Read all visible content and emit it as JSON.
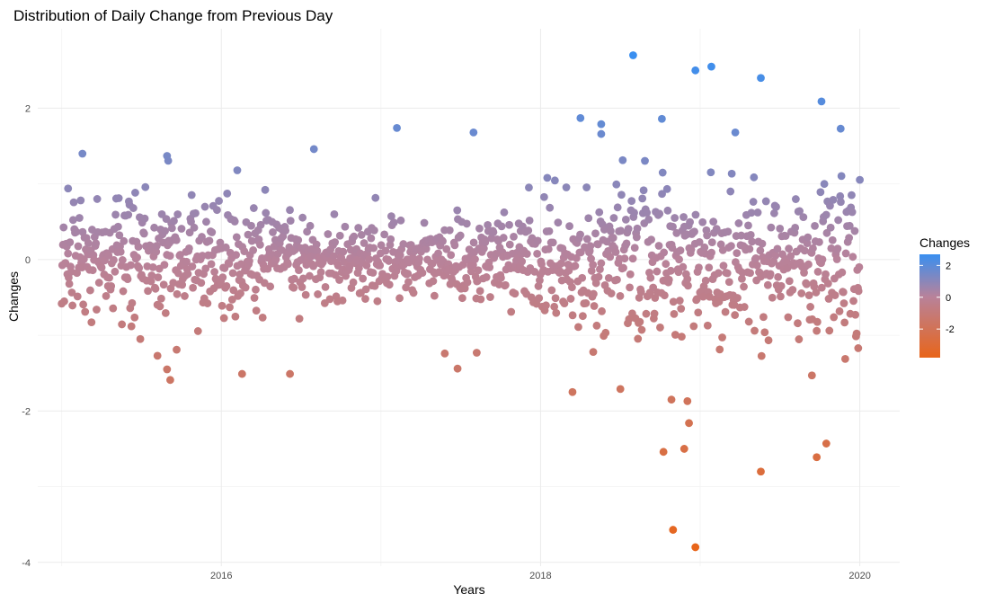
{
  "chart_data": {
    "type": "scatter",
    "title": "Distribution of Daily Change from Previous Day",
    "xlabel": "Years",
    "ylabel": "Changes",
    "xlim": [
      2014.85,
      2020.25
    ],
    "ylim": [
      -4.05,
      3.05
    ],
    "x_ticks": [
      2016,
      2018,
      2020
    ],
    "x_tick_labels": [
      "2016",
      "2018",
      "2020"
    ],
    "y_ticks": [
      -4,
      -2,
      0,
      2
    ],
    "y_tick_labels": [
      "-4",
      "-2",
      "0",
      "2"
    ],
    "grid": true,
    "legend": {
      "title": "Changes",
      "position": "right",
      "type": "colorbar",
      "ticks": [
        2,
        0,
        -2
      ],
      "tick_labels": [
        "2",
        "0",
        "-2"
      ],
      "range": [
        -3.8,
        2.7
      ],
      "color_low": "#e8651a",
      "color_mid": "#b8829a",
      "color_high": "#3a8ff0"
    },
    "highlighted_points": [
      {
        "x": 2018.58,
        "y": 2.7
      },
      {
        "x": 2018.97,
        "y": 2.5
      },
      {
        "x": 2019.07,
        "y": 2.55
      },
      {
        "x": 2019.38,
        "y": 2.4
      },
      {
        "x": 2019.76,
        "y": 2.09
      },
      {
        "x": 2017.1,
        "y": 1.74
      },
      {
        "x": 2017.58,
        "y": 1.68
      },
      {
        "x": 2018.25,
        "y": 1.87
      },
      {
        "x": 2018.38,
        "y": 1.79
      },
      {
        "x": 2018.38,
        "y": 1.66
      },
      {
        "x": 2018.76,
        "y": 1.86
      },
      {
        "x": 2019.22,
        "y": 1.68
      },
      {
        "x": 2019.88,
        "y": 1.73
      },
      {
        "x": 2016.58,
        "y": 1.46
      },
      {
        "x": 2015.13,
        "y": 1.4
      },
      {
        "x": 2015.66,
        "y": 1.37
      },
      {
        "x": 2016.1,
        "y": 1.18
      },
      {
        "x": 2015.04,
        "y": 0.94
      },
      {
        "x": 2018.97,
        "y": -3.8
      },
      {
        "x": 2018.83,
        "y": -3.57
      },
      {
        "x": 2019.38,
        "y": -2.8
      },
      {
        "x": 2019.73,
        "y": -2.61
      },
      {
        "x": 2019.79,
        "y": -2.43
      },
      {
        "x": 2018.77,
        "y": -2.54
      },
      {
        "x": 2018.9,
        "y": -2.5
      },
      {
        "x": 2018.93,
        "y": -2.16
      },
      {
        "x": 2018.82,
        "y": -1.85
      },
      {
        "x": 2018.92,
        "y": -1.87
      },
      {
        "x": 2018.2,
        "y": -1.75
      },
      {
        "x": 2018.5,
        "y": -1.71
      },
      {
        "x": 2015.6,
        "y": -1.27
      },
      {
        "x": 2015.66,
        "y": -1.45
      },
      {
        "x": 2015.72,
        "y": -1.19
      },
      {
        "x": 2015.68,
        "y": -1.59
      },
      {
        "x": 2016.13,
        "y": -1.51
      },
      {
        "x": 2016.43,
        "y": -1.51
      },
      {
        "x": 2017.4,
        "y": -1.24
      },
      {
        "x": 2017.48,
        "y": -1.44
      },
      {
        "x": 2017.6,
        "y": -1.23
      },
      {
        "x": 2018.33,
        "y": -1.22
      },
      {
        "x": 2019.7,
        "y": -1.53
      },
      {
        "x": 2019.99,
        "y": -1.17
      }
    ],
    "bulk_series": {
      "x_start": 2015.0,
      "x_end": 2020.0,
      "n_points": 1260,
      "note": "trading-day observations; values mostly within [-1, 1]"
    }
  }
}
